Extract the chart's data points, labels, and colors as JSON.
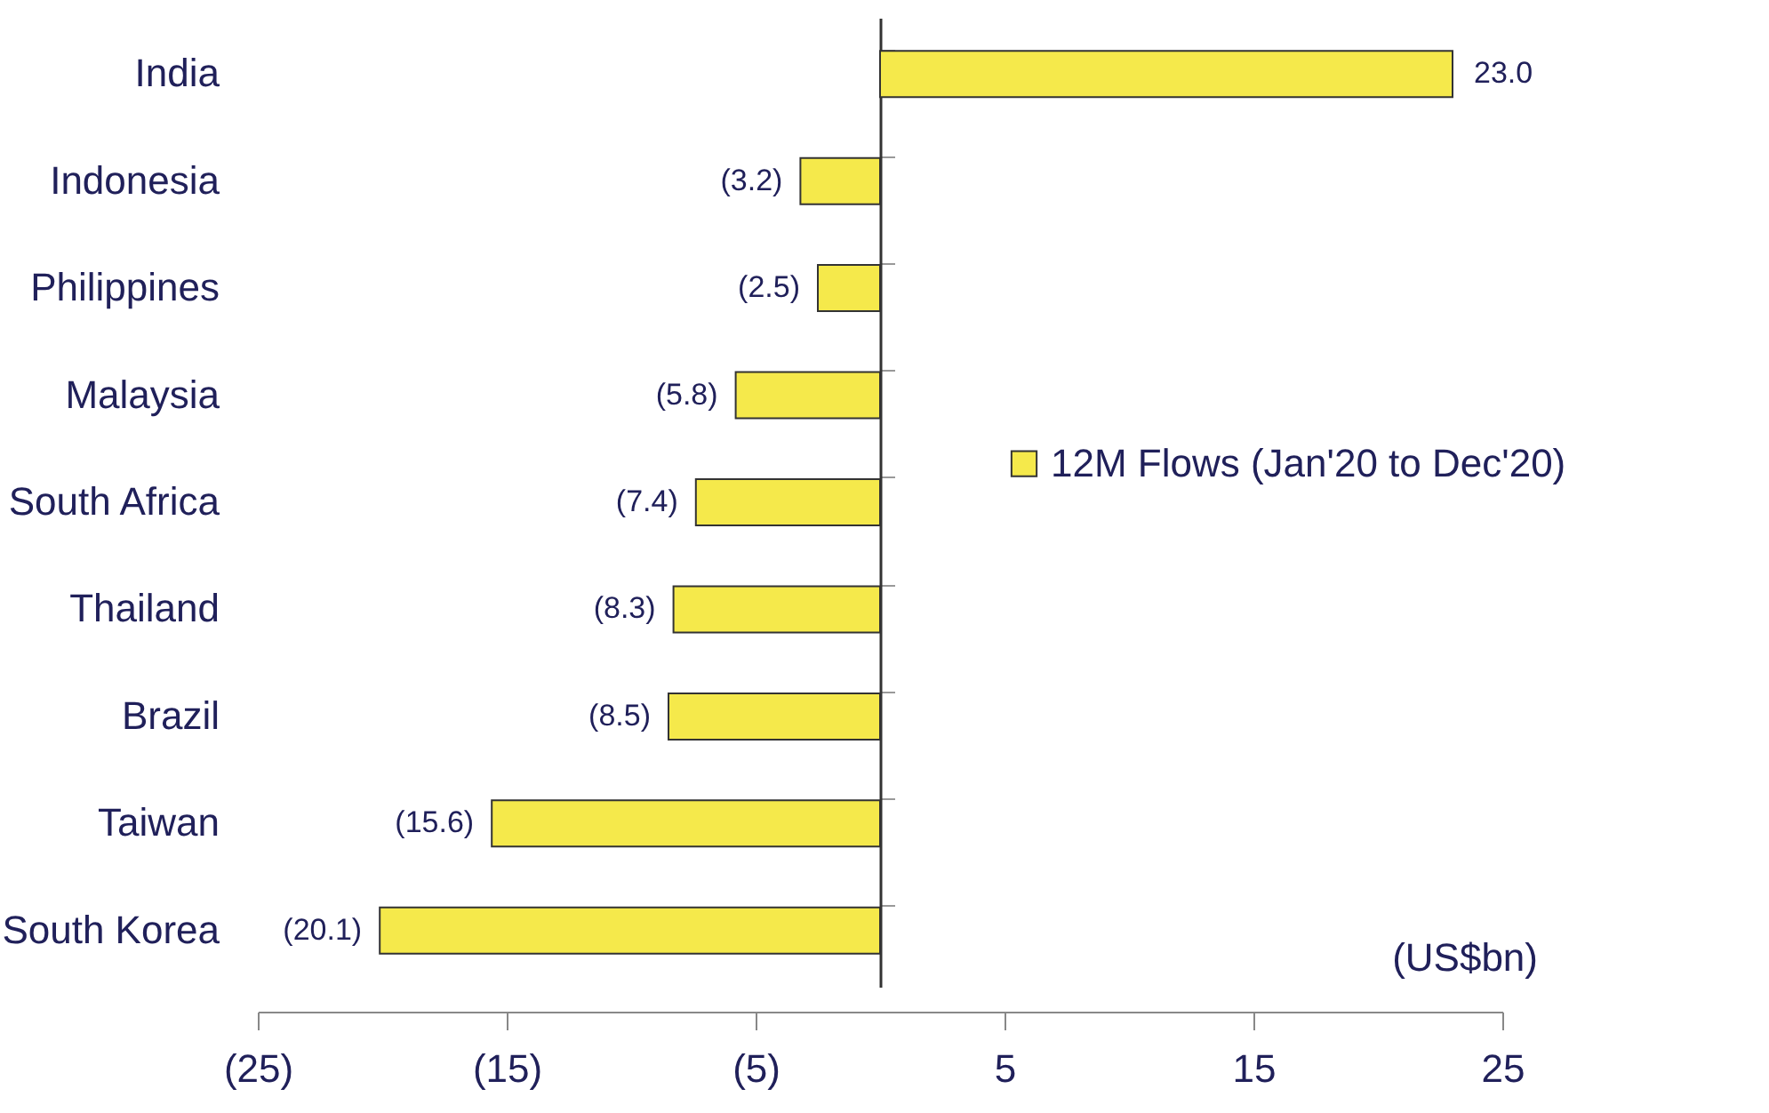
{
  "chart_data": {
    "type": "bar",
    "orientation": "horizontal",
    "categories": [
      "India",
      "Indonesia",
      "Philippines",
      "Malaysia",
      "South Africa",
      "Thailand",
      "Brazil",
      "Taiwan",
      "South Korea"
    ],
    "series": [
      {
        "name": "12M Flows (Jan'20 to Dec'20)",
        "color": "#f5e94b",
        "values": [
          23.0,
          -3.2,
          -2.5,
          -5.8,
          -7.4,
          -8.3,
          -8.5,
          -15.6,
          -20.1
        ],
        "value_labels": [
          "23.0",
          "(3.2)",
          "(2.5)",
          "(5.8)",
          "(7.4)",
          "(8.3)",
          "(8.5)",
          "(15.6)",
          "(20.1)"
        ]
      }
    ],
    "xlim": [
      -25,
      25
    ],
    "xticks": [
      {
        "value": -25,
        "label": "(25)"
      },
      {
        "value": -15,
        "label": "(15)"
      },
      {
        "value": -5,
        "label": "(5)"
      },
      5,
      15,
      25
    ],
    "annotations": [
      "(US$bn)"
    ],
    "legend": "right",
    "grid": false
  }
}
